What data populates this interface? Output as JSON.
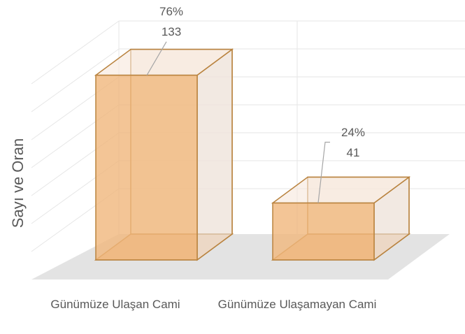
{
  "chart_data": {
    "type": "bar3d",
    "y_axis_label": "Sayı ve Oran",
    "categories": [
      "Günümüze Ulaşan Cami",
      "Günümüze Ulaşamayan Cami"
    ],
    "values": [
      133,
      41
    ],
    "percentage_labels": [
      "76%",
      "24%"
    ],
    "color": "#f0b77c",
    "ylim": [
      0,
      160
    ]
  }
}
